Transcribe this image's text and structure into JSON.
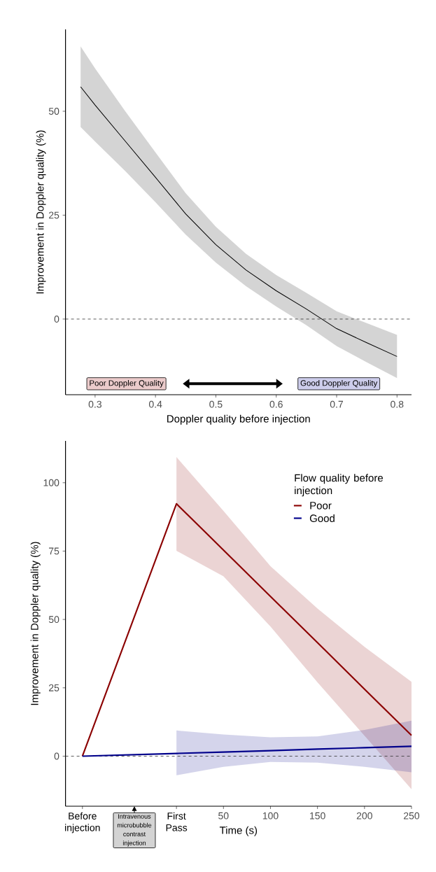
{
  "chart_data": [
    {
      "type": "line",
      "xlabel": "Doppler quality before injection",
      "ylabel": "Improvement in Doppler quality (%)",
      "annotations": [
        "Poor Doppler Quality",
        "Good Doppler Quality"
      ],
      "x": [
        0.276,
        0.3,
        0.35,
        0.4,
        0.45,
        0.5,
        0.55,
        0.6,
        0.65,
        0.7,
        0.75,
        0.8
      ],
      "series": [
        {
          "color": "#000000",
          "values": [
            55.9,
            51.5,
            42.8,
            34.1,
            25.3,
            17.9,
            11.8,
            6.8,
            2.4,
            -2.3,
            -5.7,
            -9.0
          ],
          "upper": [
            65.6,
            60.3,
            50.0,
            40.1,
            30.3,
            22.2,
            15.7,
            10.6,
            6.3,
            1.9,
            -1.0,
            -3.8
          ],
          "lower": [
            46.2,
            42.7,
            35.6,
            28.1,
            20.3,
            13.6,
            7.9,
            3.0,
            -1.5,
            -6.5,
            -10.4,
            -14.2
          ]
        }
      ],
      "xlim": [
        0.251,
        0.824
      ],
      "ylim": [
        -18.2,
        69.7
      ],
      "xticks": [
        0.3,
        0.4,
        0.5,
        0.6,
        0.7,
        0.8
      ],
      "yticks": [
        0,
        25,
        50
      ],
      "ref_lines": [
        {
          "axis": "y",
          "value": 0,
          "color": "#333333",
          "line_style": "dashed"
        }
      ]
    },
    {
      "type": "line",
      "xlabel": "Time (s)",
      "ylabel": "Improvement in Doppler quality (%)",
      "legend_title": "Flow quality before injection",
      "legend": "top right",
      "annotations": [
        "Intravenous microbubble contrast injection"
      ],
      "x": [
        -100,
        0,
        50,
        100,
        150,
        200,
        250
      ],
      "series": [
        {
          "name": "Poor",
          "color": "#8b0000",
          "values": [
            0,
            92.3,
            75.4,
            58.4,
            41.5,
            24.5,
            7.6
          ],
          "upper": [
            null,
            109.4,
            89.7,
            69.5,
            54.0,
            40.0,
            27.2
          ],
          "lower": [
            null,
            75.1,
            65.8,
            47.4,
            27.0,
            7.5,
            -12.1
          ]
        },
        {
          "name": "Good",
          "color": "#00008b",
          "values": [
            0,
            1.0,
            1.5,
            2.0,
            2.6,
            3.1,
            3.6
          ],
          "upper": [
            null,
            9.4,
            7.9,
            6.9,
            7.2,
            9.6,
            13.0
          ],
          "lower": [
            null,
            -7.0,
            -3.9,
            -2.1,
            -2.4,
            -3.9,
            -5.9
          ]
        }
      ],
      "xlim": [
        -118,
        250
      ],
      "ylim": [
        -18.3,
        115.3
      ],
      "xticks": [
        {
          "value": -100,
          "label": "Before injection"
        },
        {
          "value": 0,
          "label": "First Pass"
        },
        50,
        100,
        150,
        200,
        250
      ],
      "yticks": [
        0,
        25,
        50,
        75,
        100
      ],
      "ref_lines": [
        {
          "axis": "y",
          "value": 0,
          "color": "#333333",
          "line_style": "dashed"
        }
      ]
    }
  ]
}
